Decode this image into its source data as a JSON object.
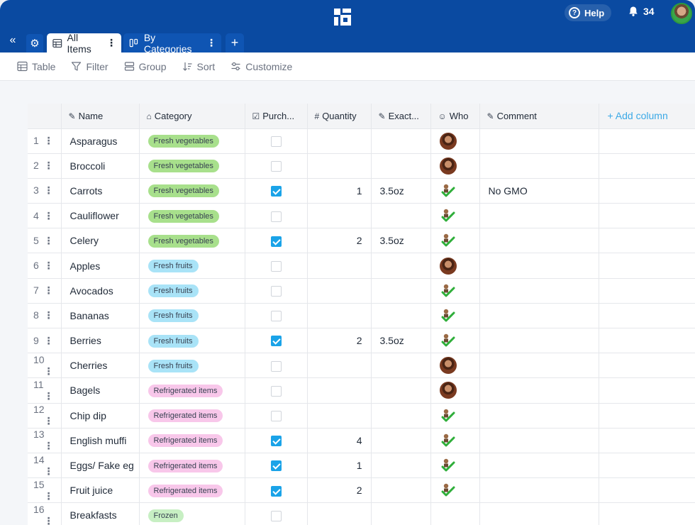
{
  "header": {
    "help_label": "Help",
    "notification_count": "34"
  },
  "tabs": {
    "active": "All Items",
    "inactive": "By Categories"
  },
  "toolbar": {
    "table": "Table",
    "filter": "Filter",
    "group": "Group",
    "sort": "Sort",
    "customize": "Customize"
  },
  "columns": {
    "name": "Name",
    "category": "Category",
    "purchased": "Purch...",
    "quantity": "Quantity",
    "exact": "Exact...",
    "who": "Who",
    "comment": "Comment",
    "add_column": "Add column"
  },
  "rows": [
    {
      "num": "1",
      "name": "Asparagus",
      "category": "Fresh vegetables",
      "cat_type": "veg",
      "purchased": false,
      "quantity": "",
      "exact": "",
      "who": "avatar",
      "comment": ""
    },
    {
      "num": "2",
      "name": "Broccoli",
      "category": "Fresh vegetables",
      "cat_type": "veg",
      "purchased": false,
      "quantity": "",
      "exact": "",
      "who": "avatar",
      "comment": ""
    },
    {
      "num": "3",
      "name": "Carrots",
      "category": "Fresh vegetables",
      "cat_type": "veg",
      "purchased": true,
      "quantity": "1",
      "exact": "3.5oz",
      "who": "check",
      "comment": "No GMO"
    },
    {
      "num": "4",
      "name": "Cauliflower",
      "category": "Fresh vegetables",
      "cat_type": "veg",
      "purchased": false,
      "quantity": "",
      "exact": "",
      "who": "check",
      "comment": ""
    },
    {
      "num": "5",
      "name": "Celery",
      "category": "Fresh vegetables",
      "cat_type": "veg",
      "purchased": true,
      "quantity": "2",
      "exact": "3.5oz",
      "who": "check",
      "comment": ""
    },
    {
      "num": "6",
      "name": "Apples",
      "category": "Fresh fruits",
      "cat_type": "fruit",
      "purchased": false,
      "quantity": "",
      "exact": "",
      "who": "avatar",
      "comment": ""
    },
    {
      "num": "7",
      "name": "Avocados",
      "category": "Fresh fruits",
      "cat_type": "fruit",
      "purchased": false,
      "quantity": "",
      "exact": "",
      "who": "check",
      "comment": ""
    },
    {
      "num": "8",
      "name": "Bananas",
      "category": "Fresh fruits",
      "cat_type": "fruit",
      "purchased": false,
      "quantity": "",
      "exact": "",
      "who": "check",
      "comment": ""
    },
    {
      "num": "9",
      "name": "Berries",
      "category": "Fresh fruits",
      "cat_type": "fruit",
      "purchased": true,
      "quantity": "2",
      "exact": "3.5oz",
      "who": "check",
      "comment": ""
    },
    {
      "num": "10",
      "name": "Cherries",
      "category": "Fresh fruits",
      "cat_type": "fruit",
      "purchased": false,
      "quantity": "",
      "exact": "",
      "who": "avatar",
      "comment": ""
    },
    {
      "num": "11",
      "name": "Bagels",
      "category": "Refrigerated items",
      "cat_type": "fridge",
      "purchased": false,
      "quantity": "",
      "exact": "",
      "who": "avatar",
      "comment": ""
    },
    {
      "num": "12",
      "name": "Chip dip",
      "category": "Refrigerated items",
      "cat_type": "fridge",
      "purchased": false,
      "quantity": "",
      "exact": "",
      "who": "check",
      "comment": ""
    },
    {
      "num": "13",
      "name": "English muffi",
      "category": "Refrigerated items",
      "cat_type": "fridge",
      "purchased": true,
      "quantity": "4",
      "exact": "",
      "who": "check",
      "comment": ""
    },
    {
      "num": "14",
      "name": "Eggs/ Fake eg",
      "category": "Refrigerated items",
      "cat_type": "fridge",
      "purchased": true,
      "quantity": "1",
      "exact": "",
      "who": "check",
      "comment": ""
    },
    {
      "num": "15",
      "name": "Fruit juice",
      "category": "Refrigerated items",
      "cat_type": "fridge",
      "purchased": true,
      "quantity": "2",
      "exact": "",
      "who": "check",
      "comment": ""
    },
    {
      "num": "16",
      "name": "Breakfasts",
      "category": "Frozen",
      "cat_type": "frozen",
      "purchased": false,
      "quantity": "",
      "exact": "",
      "who": "",
      "comment": ""
    }
  ],
  "colors": {
    "brand": "#0a4aa1",
    "accent": "#1aa3e8"
  }
}
